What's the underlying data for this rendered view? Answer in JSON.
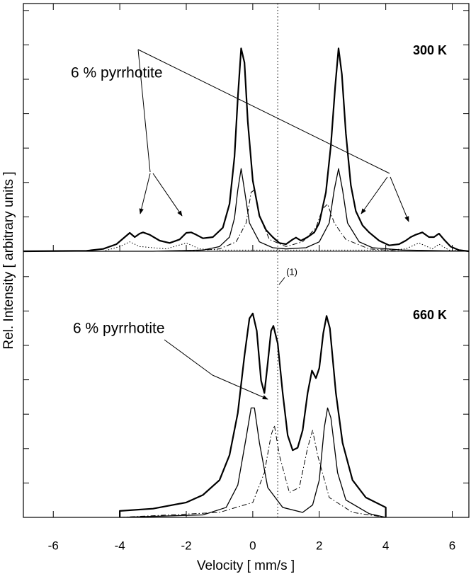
{
  "chart_data": [
    {
      "type": "line",
      "ylabel": "Rel. Intensity [ arbitrary units ]",
      "temperature": "300 K",
      "annotation": "6 % pyrrhotite",
      "xlim": [
        -6.9,
        6.5
      ],
      "ylim": [
        0,
        1.05
      ],
      "series": [
        {
          "color": "#000",
          "style": "solid",
          "width": 2.2,
          "x": [
            -6.9,
            -5.0,
            -4.5,
            -4.1,
            -3.85,
            -3.7,
            -3.55,
            -3.4,
            -3.3,
            -3.1,
            -2.8,
            -2.5,
            -2.2,
            -2.0,
            -1.85,
            -1.7,
            -1.5,
            -1.2,
            -0.9,
            -0.7,
            -0.55,
            -0.45,
            -0.35,
            -0.25,
            -0.15,
            0.0,
            0.2,
            0.4,
            0.6,
            0.8,
            1.0,
            1.2,
            1.3,
            1.45,
            1.65,
            1.85,
            2.0,
            2.2,
            2.35,
            2.48,
            2.58,
            2.68,
            2.8,
            2.95,
            3.1,
            3.3,
            3.5,
            3.8,
            4.1,
            4.4,
            4.6,
            4.75,
            4.9,
            5.1,
            5.3,
            5.45,
            5.6,
            5.75,
            5.95,
            6.2,
            6.5
          ],
          "values": [
            0,
            0.002,
            0.01,
            0.03,
            0.06,
            0.078,
            0.06,
            0.075,
            0.08,
            0.07,
            0.045,
            0.035,
            0.05,
            0.078,
            0.08,
            0.07,
            0.055,
            0.06,
            0.1,
            0.2,
            0.4,
            0.65,
            0.86,
            0.8,
            0.55,
            0.3,
            0.15,
            0.09,
            0.06,
            0.035,
            0.03,
            0.05,
            0.058,
            0.045,
            0.06,
            0.08,
            0.12,
            0.25,
            0.45,
            0.7,
            0.86,
            0.75,
            0.5,
            0.28,
            0.17,
            0.11,
            0.08,
            0.045,
            0.025,
            0.03,
            0.045,
            0.06,
            0.07,
            0.08,
            0.06,
            0.06,
            0.075,
            0.05,
            0.02,
            0.005,
            0
          ]
        },
        {
          "color": "#000",
          "style": "solid",
          "width": 1.3,
          "x": [
            -6.9,
            -3,
            -1.5,
            -1.0,
            -0.7,
            -0.55,
            -0.45,
            -0.35,
            -0.25,
            -0.1,
            0.2,
            0.6,
            1.0,
            1.6,
            2.0,
            2.3,
            2.45,
            2.58,
            2.7,
            2.85,
            3.2,
            3.6,
            4.5,
            6.5
          ],
          "values": [
            0,
            0,
            0.005,
            0.02,
            0.06,
            0.14,
            0.26,
            0.35,
            0.26,
            0.12,
            0.04,
            0.015,
            0.01,
            0.015,
            0.04,
            0.12,
            0.26,
            0.35,
            0.26,
            0.12,
            0.04,
            0.015,
            0.005,
            0
          ]
        },
        {
          "color": "#000",
          "style": "dashdot",
          "width": 1,
          "x": [
            -2,
            -1,
            -0.5,
            -0.2,
            -0.05,
            0.05,
            0.2,
            0.5,
            1,
            1.5,
            1.9,
            2.1,
            2.25,
            2.45,
            2.8,
            3.5,
            4.5
          ],
          "values": [
            0,
            0.01,
            0.04,
            0.12,
            0.25,
            0.26,
            0.15,
            0.05,
            0.02,
            0.04,
            0.1,
            0.18,
            0.2,
            0.12,
            0.05,
            0.01,
            0
          ]
        },
        {
          "color": "#000",
          "style": "dotted",
          "width": 1,
          "x": [
            -6.9,
            -4.5,
            -4.0,
            -3.7,
            -3.4,
            -2.6,
            -2.0,
            -1.6,
            -1,
            4,
            4.6,
            5.0,
            5.4,
            5.6,
            5.9,
            6.5
          ],
          "values": [
            0,
            0,
            0.02,
            0.04,
            0.02,
            0.01,
            0.035,
            0.01,
            0.005,
            0.005,
            0.01,
            0.035,
            0.01,
            0.03,
            0.005,
            0
          ]
        }
      ]
    },
    {
      "type": "line",
      "temperature": "660 K",
      "annotation": "6 % pyrrhotite",
      "xlabel": "Velocity [ mm/s ]",
      "xlim": [
        -6.9,
        6.5
      ],
      "xticks": [
        -6,
        -4,
        -2,
        0,
        2,
        4,
        6
      ],
      "ylim": [
        0,
        1.07
      ],
      "reference_line": {
        "x": 0.75,
        "label": "(1)"
      },
      "series": [
        {
          "color": "#000",
          "style": "solid",
          "width": 2.2,
          "x": [
            -4,
            -4,
            -3,
            -2,
            -1.5,
            -1,
            -0.7,
            -0.45,
            -0.25,
            -0.1,
            0.0,
            0.12,
            0.25,
            0.35,
            0.45,
            0.55,
            0.62,
            0.75,
            0.9,
            1.05,
            1.2,
            1.35,
            1.5,
            1.65,
            1.78,
            1.9,
            2.0,
            2.12,
            2.22,
            2.32,
            2.5,
            2.7,
            3.0,
            3.4,
            4,
            4
          ],
          "values": [
            0,
            0.026,
            0.035,
            0.06,
            0.09,
            0.15,
            0.25,
            0.42,
            0.65,
            0.8,
            0.82,
            0.75,
            0.55,
            0.5,
            0.62,
            0.75,
            0.77,
            0.7,
            0.5,
            0.33,
            0.27,
            0.28,
            0.35,
            0.5,
            0.59,
            0.56,
            0.6,
            0.74,
            0.81,
            0.76,
            0.5,
            0.3,
            0.15,
            0.08,
            0.04,
            0
          ]
        },
        {
          "color": "#000",
          "style": "solid",
          "width": 1.3,
          "x": [
            -4,
            -1.5,
            -0.8,
            -0.45,
            -0.2,
            -0.05,
            0.05,
            0.2,
            0.45,
            0.9,
            1.5,
            1.8,
            2.0,
            2.15,
            2.25,
            2.35,
            2.55,
            2.8,
            3.5,
            4
          ],
          "values": [
            0,
            0.01,
            0.04,
            0.13,
            0.32,
            0.44,
            0.44,
            0.3,
            0.12,
            0.04,
            0.02,
            0.05,
            0.15,
            0.36,
            0.44,
            0.4,
            0.18,
            0.07,
            0.015,
            0
          ]
        },
        {
          "color": "#000",
          "style": "dashdot",
          "width": 1,
          "x": [
            -4,
            -1,
            0,
            0.35,
            0.55,
            0.65,
            0.8,
            1.1,
            1.4,
            1.65,
            1.8,
            1.95,
            2.3,
            3,
            4
          ],
          "values": [
            0,
            0.02,
            0.06,
            0.18,
            0.33,
            0.37,
            0.25,
            0.1,
            0.12,
            0.28,
            0.35,
            0.25,
            0.08,
            0.02,
            0
          ]
        }
      ]
    }
  ]
}
